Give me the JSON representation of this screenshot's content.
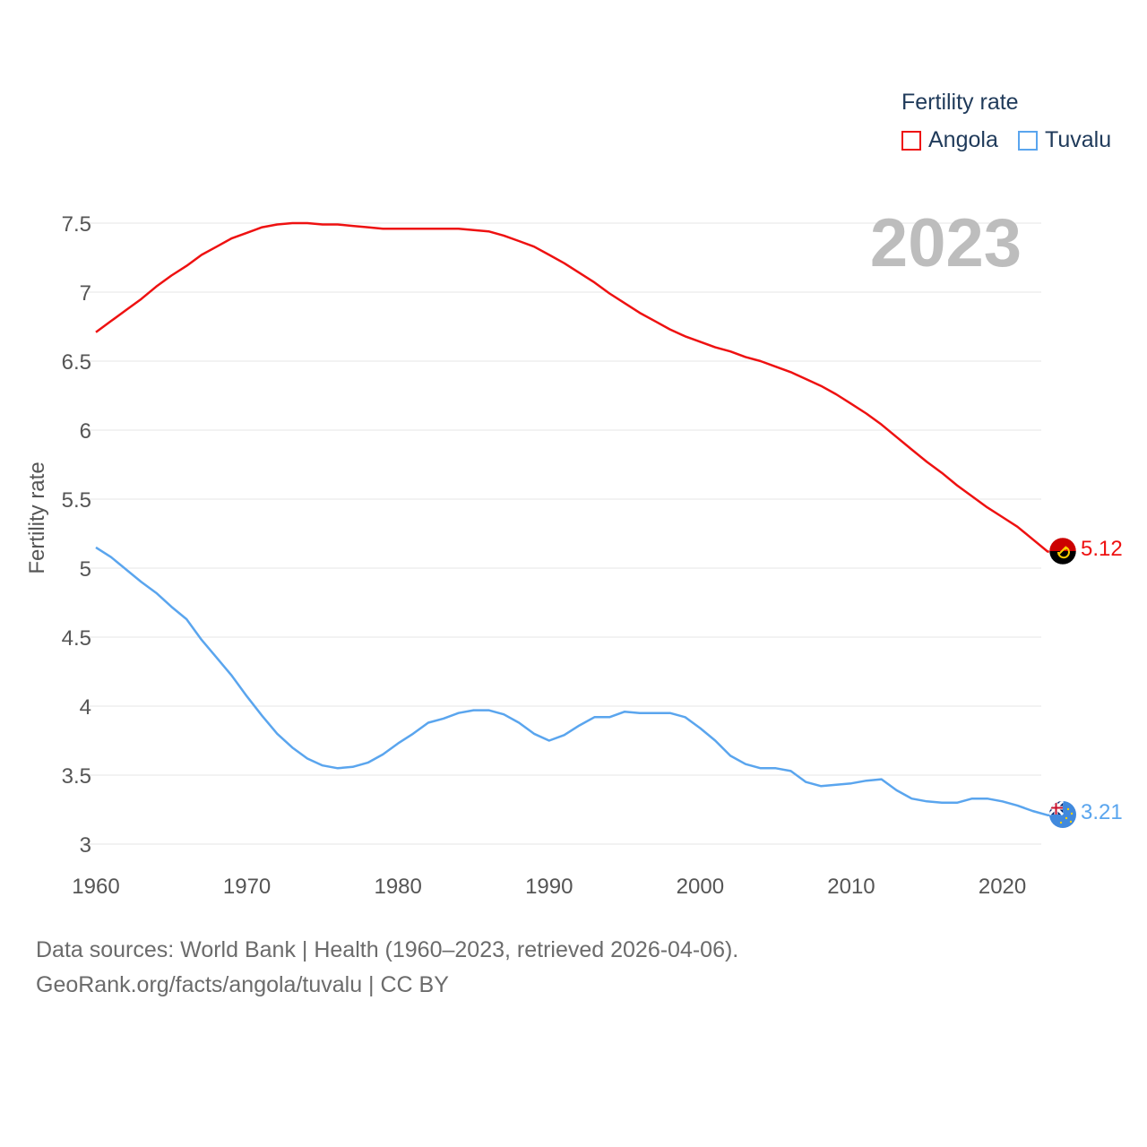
{
  "legend": {
    "title": "Fertility rate",
    "items": [
      {
        "label": "Angola",
        "color": "#ee1111"
      },
      {
        "label": "Tuvalu",
        "color": "#5aa5ee"
      }
    ]
  },
  "year_label": "2023",
  "end_labels": {
    "angola": "5.12",
    "tuvalu": "3.21"
  },
  "footer": {
    "line1": "Data sources: World Bank | Health (1960–2023, retrieved 2026-04-06).",
    "line2": "GeoRank.org/facts/angola/tuvalu | CC BY"
  },
  "chart_data": {
    "type": "line",
    "title": "Fertility rate",
    "xlabel": "",
    "ylabel": "Fertility rate",
    "xlim": [
      1960,
      2024
    ],
    "ylim": [
      3,
      7.5
    ],
    "x_ticks": [
      1960,
      1970,
      1980,
      1990,
      2000,
      2010,
      2020
    ],
    "y_ticks": [
      3,
      3.5,
      4,
      4.5,
      5,
      5.5,
      6,
      6.5,
      7,
      7.5
    ],
    "y_tick_labels": [
      "3",
      "3.5",
      "4",
      "4.5",
      "5",
      "5.5",
      "6",
      "6.5",
      "7",
      "7.5"
    ],
    "grid": true,
    "series": [
      {
        "name": "Angola",
        "color": "#ee1111",
        "x": [
          1960,
          1961,
          1962,
          1963,
          1964,
          1965,
          1966,
          1967,
          1968,
          1969,
          1970,
          1971,
          1972,
          1973,
          1974,
          1975,
          1976,
          1977,
          1978,
          1979,
          1980,
          1981,
          1982,
          1983,
          1984,
          1985,
          1986,
          1987,
          1988,
          1989,
          1990,
          1991,
          1992,
          1993,
          1994,
          1995,
          1996,
          1997,
          1998,
          1999,
          2000,
          2001,
          2002,
          2003,
          2004,
          2005,
          2006,
          2007,
          2008,
          2009,
          2010,
          2011,
          2012,
          2013,
          2014,
          2015,
          2016,
          2017,
          2018,
          2019,
          2020,
          2021,
          2022,
          2023
        ],
        "values": [
          6.71,
          6.79,
          6.87,
          6.95,
          7.04,
          7.12,
          7.19,
          7.27,
          7.33,
          7.39,
          7.43,
          7.47,
          7.49,
          7.5,
          7.5,
          7.49,
          7.49,
          7.48,
          7.47,
          7.46,
          7.46,
          7.46,
          7.46,
          7.46,
          7.46,
          7.45,
          7.44,
          7.41,
          7.37,
          7.33,
          7.27,
          7.21,
          7.14,
          7.07,
          6.99,
          6.92,
          6.85,
          6.79,
          6.73,
          6.68,
          6.64,
          6.6,
          6.57,
          6.53,
          6.5,
          6.46,
          6.42,
          6.37,
          6.32,
          6.26,
          6.19,
          6.12,
          6.04,
          5.95,
          5.86,
          5.77,
          5.69,
          5.6,
          5.52,
          5.44,
          5.37,
          5.3,
          5.21,
          5.12
        ]
      },
      {
        "name": "Tuvalu",
        "color": "#5aa5ee",
        "x": [
          1960,
          1961,
          1962,
          1963,
          1964,
          1965,
          1966,
          1967,
          1968,
          1969,
          1970,
          1971,
          1972,
          1973,
          1974,
          1975,
          1976,
          1977,
          1978,
          1979,
          1980,
          1981,
          1982,
          1983,
          1984,
          1985,
          1986,
          1987,
          1988,
          1989,
          1990,
          1991,
          1992,
          1993,
          1994,
          1995,
          1996,
          1997,
          1998,
          1999,
          2000,
          2001,
          2002,
          2003,
          2004,
          2005,
          2006,
          2007,
          2008,
          2009,
          2010,
          2011,
          2012,
          2013,
          2014,
          2015,
          2016,
          2017,
          2018,
          2019,
          2020,
          2021,
          2022,
          2023
        ],
        "values": [
          5.15,
          5.08,
          4.99,
          4.9,
          4.82,
          4.72,
          4.63,
          4.48,
          4.35,
          4.22,
          4.07,
          3.93,
          3.8,
          3.7,
          3.62,
          3.57,
          3.55,
          3.56,
          3.59,
          3.65,
          3.73,
          3.8,
          3.88,
          3.91,
          3.95,
          3.97,
          3.97,
          3.94,
          3.88,
          3.8,
          3.75,
          3.79,
          3.86,
          3.92,
          3.92,
          3.96,
          3.95,
          3.95,
          3.95,
          3.92,
          3.84,
          3.75,
          3.64,
          3.58,
          3.55,
          3.55,
          3.53,
          3.45,
          3.42,
          3.43,
          3.44,
          3.46,
          3.47,
          3.39,
          3.33,
          3.31,
          3.3,
          3.3,
          3.33,
          3.33,
          3.31,
          3.28,
          3.24,
          3.21
        ]
      }
    ]
  }
}
